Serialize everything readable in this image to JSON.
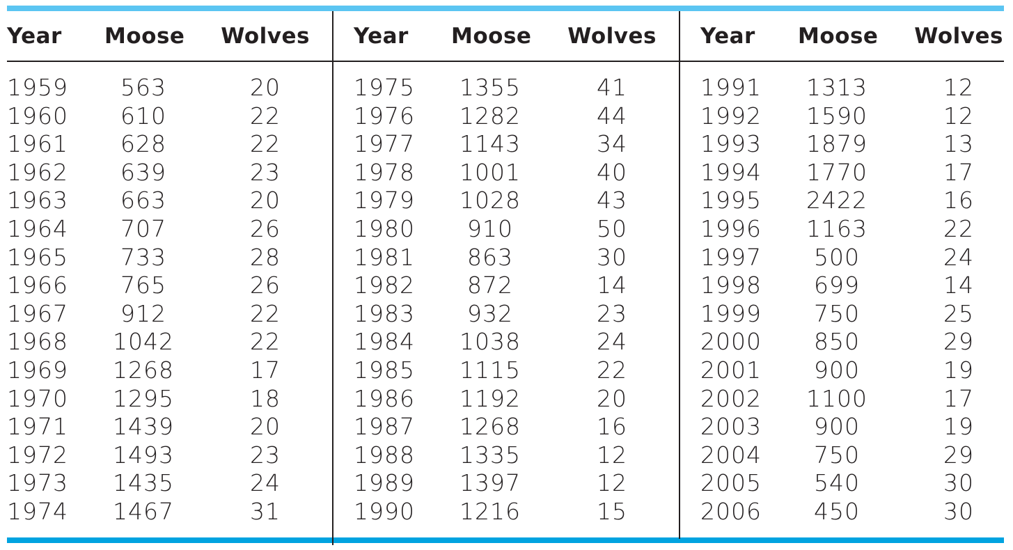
{
  "headers": {
    "year": "Year",
    "moose": "Moose",
    "wolves": "Wolves"
  },
  "groups": [
    {
      "rows": [
        {
          "year": "1959",
          "moose": "563",
          "wolves": "20"
        },
        {
          "year": "1960",
          "moose": "610",
          "wolves": "22"
        },
        {
          "year": "1961",
          "moose": "628",
          "wolves": "22"
        },
        {
          "year": "1962",
          "moose": "639",
          "wolves": "23"
        },
        {
          "year": "1963",
          "moose": "663",
          "wolves": "20"
        },
        {
          "year": "1964",
          "moose": "707",
          "wolves": "26"
        },
        {
          "year": "1965",
          "moose": "733",
          "wolves": "28"
        },
        {
          "year": "1966",
          "moose": "765",
          "wolves": "26"
        },
        {
          "year": "1967",
          "moose": "912",
          "wolves": "22"
        },
        {
          "year": "1968",
          "moose": "1042",
          "wolves": "22"
        },
        {
          "year": "1969",
          "moose": "1268",
          "wolves": "17"
        },
        {
          "year": "1970",
          "moose": "1295",
          "wolves": "18"
        },
        {
          "year": "1971",
          "moose": "1439",
          "wolves": "20"
        },
        {
          "year": "1972",
          "moose": "1493",
          "wolves": "23"
        },
        {
          "year": "1973",
          "moose": "1435",
          "wolves": "24"
        },
        {
          "year": "1974",
          "moose": "1467",
          "wolves": "31"
        }
      ]
    },
    {
      "rows": [
        {
          "year": "1975",
          "moose": "1355",
          "wolves": "41"
        },
        {
          "year": "1976",
          "moose": "1282",
          "wolves": "44"
        },
        {
          "year": "1977",
          "moose": "1143",
          "wolves": "34"
        },
        {
          "year": "1978",
          "moose": "1001",
          "wolves": "40"
        },
        {
          "year": "1979",
          "moose": "1028",
          "wolves": "43"
        },
        {
          "year": "1980",
          "moose": "910",
          "wolves": "50"
        },
        {
          "year": "1981",
          "moose": "863",
          "wolves": "30"
        },
        {
          "year": "1982",
          "moose": "872",
          "wolves": "14"
        },
        {
          "year": "1983",
          "moose": "932",
          "wolves": "23"
        },
        {
          "year": "1984",
          "moose": "1038",
          "wolves": "24"
        },
        {
          "year": "1985",
          "moose": "1115",
          "wolves": "22"
        },
        {
          "year": "1986",
          "moose": "1192",
          "wolves": "20"
        },
        {
          "year": "1987",
          "moose": "1268",
          "wolves": "16"
        },
        {
          "year": "1988",
          "moose": "1335",
          "wolves": "12"
        },
        {
          "year": "1989",
          "moose": "1397",
          "wolves": "12"
        },
        {
          "year": "1990",
          "moose": "1216",
          "wolves": "15"
        }
      ]
    },
    {
      "rows": [
        {
          "year": "1991",
          "moose": "1313",
          "wolves": "12"
        },
        {
          "year": "1992",
          "moose": "1590",
          "wolves": "12"
        },
        {
          "year": "1993",
          "moose": "1879",
          "wolves": "13"
        },
        {
          "year": "1994",
          "moose": "1770",
          "wolves": "17"
        },
        {
          "year": "1995",
          "moose": "2422",
          "wolves": "16"
        },
        {
          "year": "1996",
          "moose": "1163",
          "wolves": "22"
        },
        {
          "year": "1997",
          "moose": "500",
          "wolves": "24"
        },
        {
          "year": "1998",
          "moose": "699",
          "wolves": "14"
        },
        {
          "year": "1999",
          "moose": "750",
          "wolves": "25"
        },
        {
          "year": "2000",
          "moose": "850",
          "wolves": "29"
        },
        {
          "year": "2001",
          "moose": "900",
          "wolves": "19"
        },
        {
          "year": "2002",
          "moose": "1100",
          "wolves": "17"
        },
        {
          "year": "2003",
          "moose": "900",
          "wolves": "19"
        },
        {
          "year": "2004",
          "moose": "750",
          "wolves": "29"
        },
        {
          "year": "2005",
          "moose": "540",
          "wolves": "30"
        },
        {
          "year": "2006",
          "moose": "450",
          "wolves": "30"
        }
      ]
    }
  ],
  "colors": {
    "top_rule": "#5bc5f2",
    "bottom_rule": "#00a3e0",
    "text": "#231f20"
  }
}
